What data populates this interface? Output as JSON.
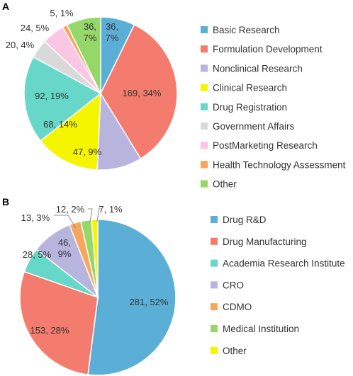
{
  "chart_data": [
    {
      "type": "pie",
      "panel": "A",
      "slices": [
        {
          "name": "Basic Research",
          "value": 36,
          "percent": 7,
          "label": "36,\n7%",
          "color": "#5bafd6"
        },
        {
          "name": "Formulation Development",
          "value": 169,
          "percent": 34,
          "label": "169, 34%",
          "color": "#f47c6e"
        },
        {
          "name": "Nonclinical Research",
          "value": 47,
          "percent": 9,
          "label": "47, 9%",
          "color": "#b7b4dd"
        },
        {
          "name": "Clinical Research",
          "value": 68,
          "percent": 14,
          "label": "68, 14%",
          "color": "#f5f500"
        },
        {
          "name": "Drug Registration",
          "value": 92,
          "percent": 19,
          "label": "92, 19%",
          "color": "#66d7c9"
        },
        {
          "name": "Government Affairs",
          "value": 20,
          "percent": 4,
          "label": "20, 4%",
          "color": "#d9d9d9"
        },
        {
          "name": "PostMarketing Research",
          "value": 24,
          "percent": 5,
          "label": "24, 5%",
          "color": "#f9c6e4"
        },
        {
          "name": "Health Technology Assessment",
          "value": 5,
          "percent": 1,
          "label": "5, 1%",
          "color": "#f7a65e"
        },
        {
          "name": "Other",
          "value": 36,
          "percent": 7,
          "label": "36,\n7%",
          "color": "#96d76a"
        }
      ],
      "legend": [
        "Basic Research",
        "Formulation Development",
        "Nonclinical Research",
        "Clinical Research",
        "Drug Registration",
        "Government Affairs",
        "PostMarketing Research",
        "Health Technology Assessment",
        "Other"
      ],
      "legend_position": "right"
    },
    {
      "type": "pie",
      "panel": "B",
      "slices": [
        {
          "name": "Drug R&D",
          "value": 281,
          "percent": 52,
          "label": "281, 52%",
          "color": "#5bafd6"
        },
        {
          "name": "Drug Manufacturing",
          "value": 153,
          "percent": 28,
          "label": "153, 28%",
          "color": "#f47c6e"
        },
        {
          "name": "Academia Research Institute",
          "value": 28,
          "percent": 5,
          "label": "28, 5%",
          "color": "#66d7c9"
        },
        {
          "name": "CRO",
          "value": 46,
          "percent": 9,
          "label": "46,\n9%",
          "color": "#b7b4dd"
        },
        {
          "name": "CDMO",
          "value": 13,
          "percent": 3,
          "label": "13, 3%",
          "color": "#f7a65e"
        },
        {
          "name": "Medical Institution",
          "value": 12,
          "percent": 2,
          "label": "12, 2%",
          "color": "#96d76a"
        },
        {
          "name": "Other",
          "value": 7,
          "percent": 1,
          "label": "7, 1%",
          "color": "#f5f500"
        }
      ],
      "legend": [
        "Drug R&D",
        "Drug Manufacturing",
        "Academia Research Institute",
        "CRO",
        "CDMO",
        "Medical Institution",
        "Other"
      ],
      "legend_position": "right"
    }
  ]
}
